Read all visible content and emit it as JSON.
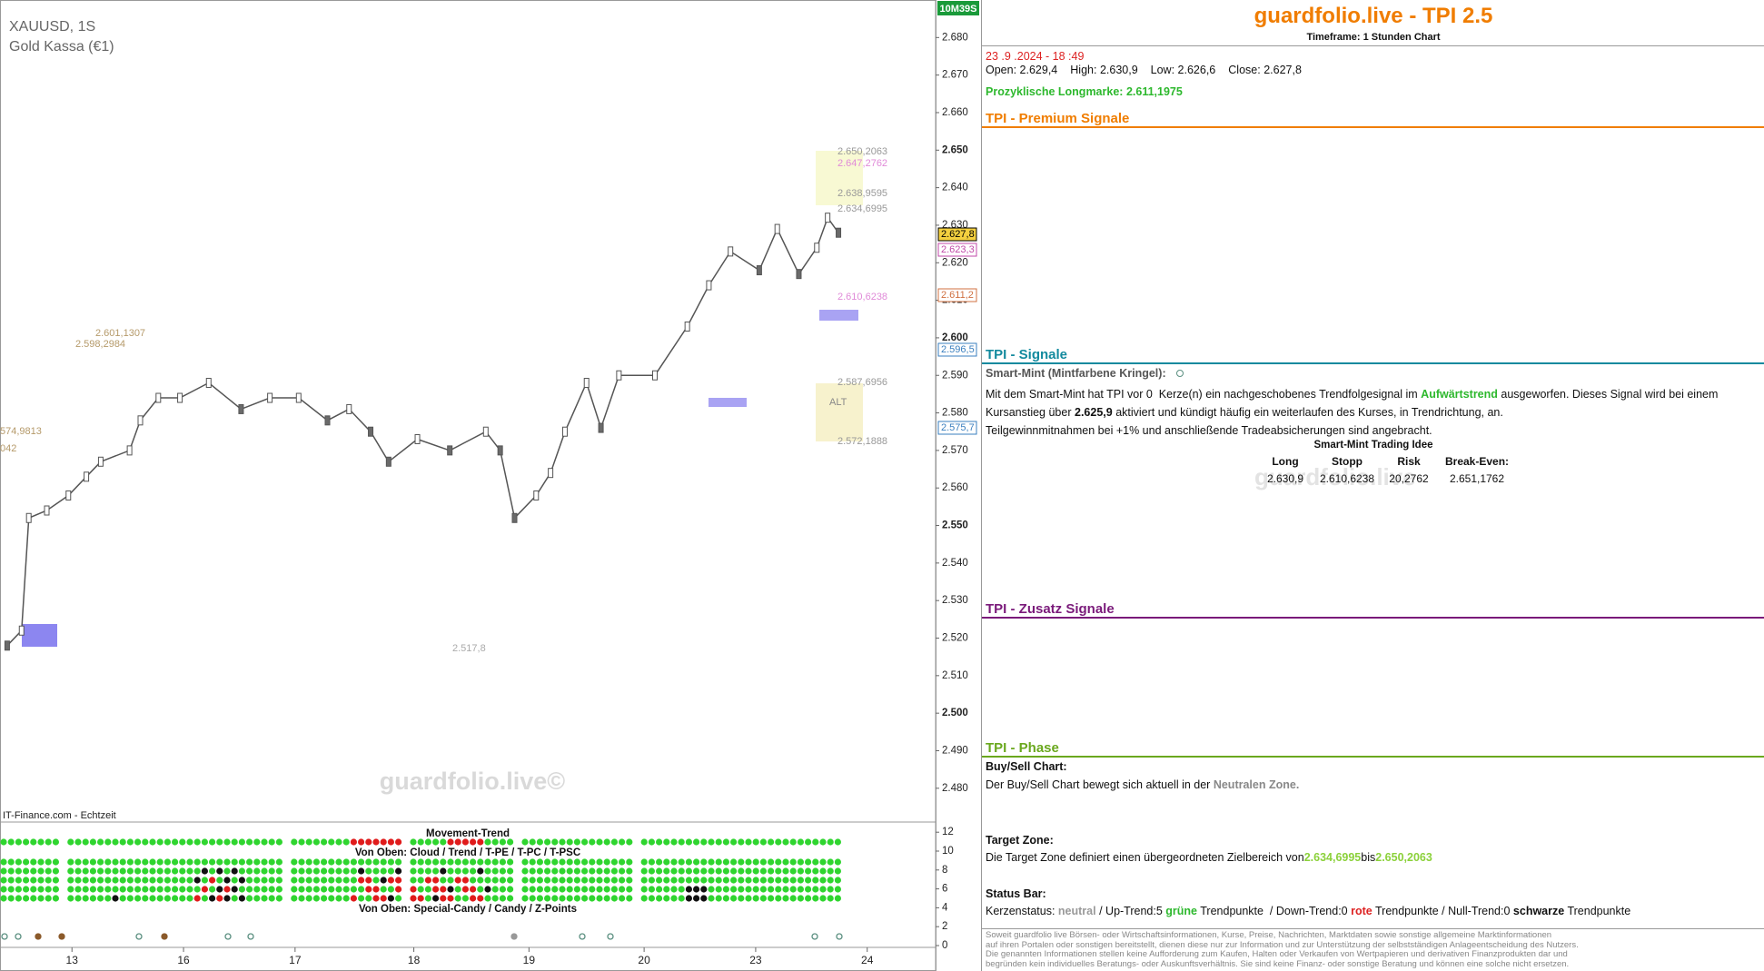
{
  "chart_data": [
    {
      "type": "line",
      "title": "XAUUSD, 1S",
      "subtitle": "Gold Kassa (€1)",
      "timer": "10M39S",
      "source": "IT-Finance.com - Echtzeit",
      "watermark": "guardfolio.live©",
      "x": [
        2,
        6,
        8,
        13,
        19,
        24,
        28,
        36,
        39,
        44,
        50,
        58,
        67,
        75,
        83,
        91,
        97,
        103,
        108,
        116,
        125,
        135,
        139,
        143,
        149,
        153,
        157,
        163,
        167,
        172,
        182,
        191,
        197,
        203,
        211,
        216,
        222,
        227,
        230,
        233
      ],
      "values": [
        2518,
        2522,
        2552,
        2554,
        2558,
        2563,
        2567,
        2570,
        2578,
        2584,
        2584,
        2588,
        2581,
        2584,
        2584,
        2578,
        2581,
        2575,
        2567,
        2573,
        2570,
        2575,
        2570,
        2552,
        2558,
        2564,
        2575,
        2588,
        2576,
        2590,
        2590,
        2603,
        2614,
        2623,
        2618,
        2629,
        2617,
        2624,
        2632,
        2628
      ],
      "color": "#555555",
      "xlim": [
        0,
        260
      ],
      "xticks": [
        {
          "value": 20,
          "label": "13"
        },
        {
          "value": 51,
          "label": "16"
        },
        {
          "value": 82,
          "label": "17"
        },
        {
          "value": 115,
          "label": "18"
        },
        {
          "value": 147,
          "label": "19"
        },
        {
          "value": 179,
          "label": "20"
        },
        {
          "value": 210,
          "label": "23"
        },
        {
          "value": 241,
          "label": "24"
        }
      ],
      "ylim": [
        2471,
        2690
      ],
      "yticks": [
        {
          "value": 2480,
          "label": "2.480"
        },
        {
          "value": 2490,
          "label": "2.490"
        },
        {
          "value": 2500,
          "label": "2.500"
        },
        {
          "value": 2510,
          "label": "2.510"
        },
        {
          "value": 2520,
          "label": "2.520"
        },
        {
          "value": 2530,
          "label": "2.530"
        },
        {
          "value": 2540,
          "label": "2.540"
        },
        {
          "value": 2550,
          "label": "2.550"
        },
        {
          "value": 2560,
          "label": "2.560"
        },
        {
          "value": 2570,
          "label": "2.570"
        },
        {
          "value": 2580,
          "label": "2.580"
        },
        {
          "value": 2590,
          "label": "2.590"
        },
        {
          "value": 2600,
          "label": "2.600"
        },
        {
          "value": 2610,
          "label": "2.610"
        },
        {
          "value": 2620,
          "label": "2.620"
        },
        {
          "value": 2630,
          "label": "2.630"
        },
        {
          "value": 2640,
          "label": "2.640"
        },
        {
          "value": 2650,
          "label": "2.650"
        },
        {
          "value": 2660,
          "label": "2.660"
        },
        {
          "value": 2670,
          "label": "2.670"
        },
        {
          "value": 2680,
          "label": "2.680"
        }
      ],
      "annotations": [
        "2.650,2063",
        "2.647,2762",
        "2.638,9595",
        "2.634,6995",
        "2.610,6238",
        "2.587,6956",
        "2.572,1888",
        "2.601,1307",
        "2.598,2984",
        "574,9813",
        "042",
        "2.517,8",
        "ALT"
      ],
      "price_tags": [
        "2.627,8",
        "2.623,3",
        "2.611,2",
        "2.596,5",
        "2.575,7"
      ]
    },
    {
      "type": "dots",
      "titles": [
        "Movement-Trend",
        "Von Oben: Cloud / Trend / T-PE / T-PC / T-PSC",
        "Von Oben: Special-Candy / Candy / Z-Points"
      ],
      "ylim": [
        0,
        12.5
      ],
      "yticks": [
        0,
        2,
        4,
        6,
        8,
        10,
        12
      ]
    }
  ],
  "panel": {
    "title": "guardfolio.live - TPI 2.5",
    "timeframe": "Timeframe: 1 Stunden Chart",
    "date": "23 .9 .2024 - 18 :49",
    "ohlc": [
      "Open:",
      "2.629,4",
      "High:",
      "2.630,9",
      "Low:",
      "2.626,6",
      "Close:",
      "2.627,8"
    ],
    "longmark": [
      "Prozyklische Longmarke:",
      "2.611,1975"
    ],
    "premium": "TPI - Premium Signale",
    "signale": {
      "title": "TPI - Signale",
      "head": "Smart-Mint (Mintfarbene Kringel):",
      "text": [
        "Mit dem Smart-Mint hat TPI vor 0  Kerze(n) ein nachgeschobenes Trendfolgesignal im",
        "Aufwärtstrend",
        "ausgeworfen. Dieses Signal wird bei einem",
        "Kursanstieg über",
        "2.625,9",
        "aktiviert und kündigt häufig ein weiterlaufen des Kurses, in Trendrichtung, an.",
        "Teilgewinnmitnahmen bei +1% und anschließende Tradeabsicherungen sind angebracht."
      ],
      "idea": "Smart-Mint Trading Idee",
      "table": [
        [
          "Long",
          "Stopp",
          "Risk",
          "Break-Even:"
        ],
        [
          "2.630,9",
          "2.610,6238",
          "20,2762",
          "2.651,1762"
        ]
      ],
      "watermark": "guardfolio.live"
    },
    "zusatz": "TPI - Zusatz Signale",
    "phase": {
      "title": "TPI - Phase",
      "buysell_head": "Buy/Sell Chart:",
      "buysell": [
        "Der Buy/Sell Chart bewegt sich aktuell in der",
        "Neutralen Zone."
      ],
      "target_head": "Target Zone:",
      "target": [
        "Die Target Zone definiert einen übergeordneten Zielbereich von",
        "2.634,6995",
        "bis",
        "2.650,2063"
      ],
      "status_head": "Status Bar:",
      "status": [
        "Kerzenstatus:",
        "neutral",
        "/ Up-Trend:5",
        "grüne",
        "Trendpunkte  / Down-Trend:0",
        "rote",
        "Trendpunkte / Null-Trend:0",
        "schwarze",
        "Trendpunkte"
      ]
    },
    "disclaimer": [
      "Soweit guardfolio live Börsen- oder Wirtschaftsinformationen, Kurse, Preise, Nachrichten, Marktdaten sowie sonstige allgemeine Marktinformationen",
      "auf ihren Portalen oder sonstigen bereitstellt, dienen diese nur zur Information und zur Unterstützung der selbstständigen Anlageentscheidung des Nutzers.",
      "Die genannten Informationen stellen keine Aufforderung zum Kaufen, Halten oder Verkaufen von Wertpapieren und derivativen Finanzprodukten dar und",
      "begründen kein individuelles Beratungs- oder Auskunftsverhältnis. Sie sind keine Finanz- oder sonstige Beratung und können eine solche nicht ersetzen."
    ]
  }
}
